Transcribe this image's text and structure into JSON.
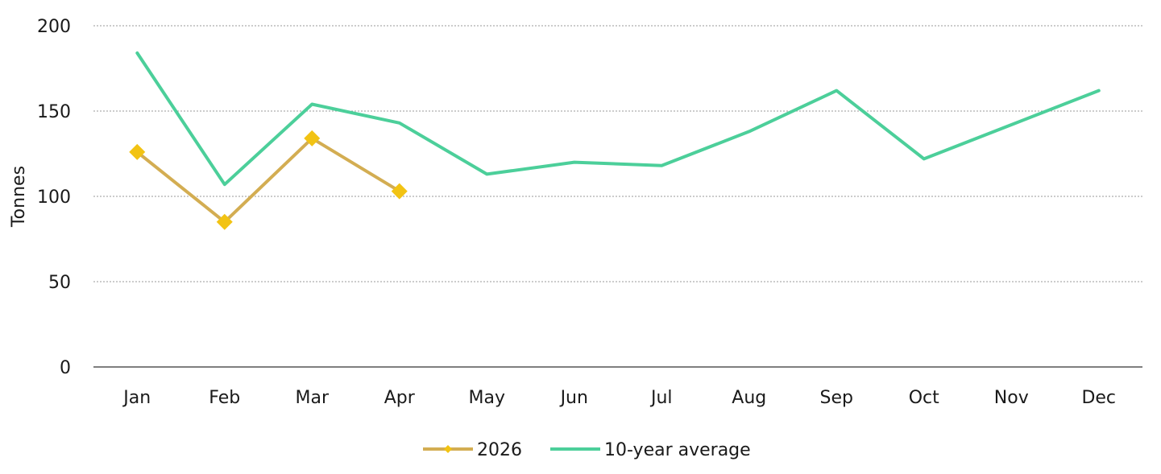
{
  "chart_data": {
    "type": "line",
    "title": "",
    "xlabel": "",
    "ylabel": "Tonnes",
    "categories": [
      "Jan",
      "Feb",
      "Mar",
      "Apr",
      "May",
      "Jun",
      "Jul",
      "Aug",
      "Sep",
      "Oct",
      "Nov",
      "Dec"
    ],
    "ylim": [
      0,
      200
    ],
    "yticks": [
      "0",
      "50",
      "100",
      "150",
      "200"
    ],
    "grid": true,
    "legend": "bottom",
    "series": [
      {
        "name": "2026",
        "color": "#d3ad52",
        "marker": "diamond",
        "marker_color": "#f2c313",
        "values": [
          126,
          85,
          134,
          103,
          null,
          null,
          null,
          null,
          null,
          null,
          null,
          null
        ]
      },
      {
        "name": "10-year average",
        "color": "#4ccf9a",
        "marker": "none",
        "values": [
          184,
          107,
          154,
          143,
          113,
          120,
          118,
          138,
          162,
          122,
          142,
          162
        ]
      }
    ]
  }
}
